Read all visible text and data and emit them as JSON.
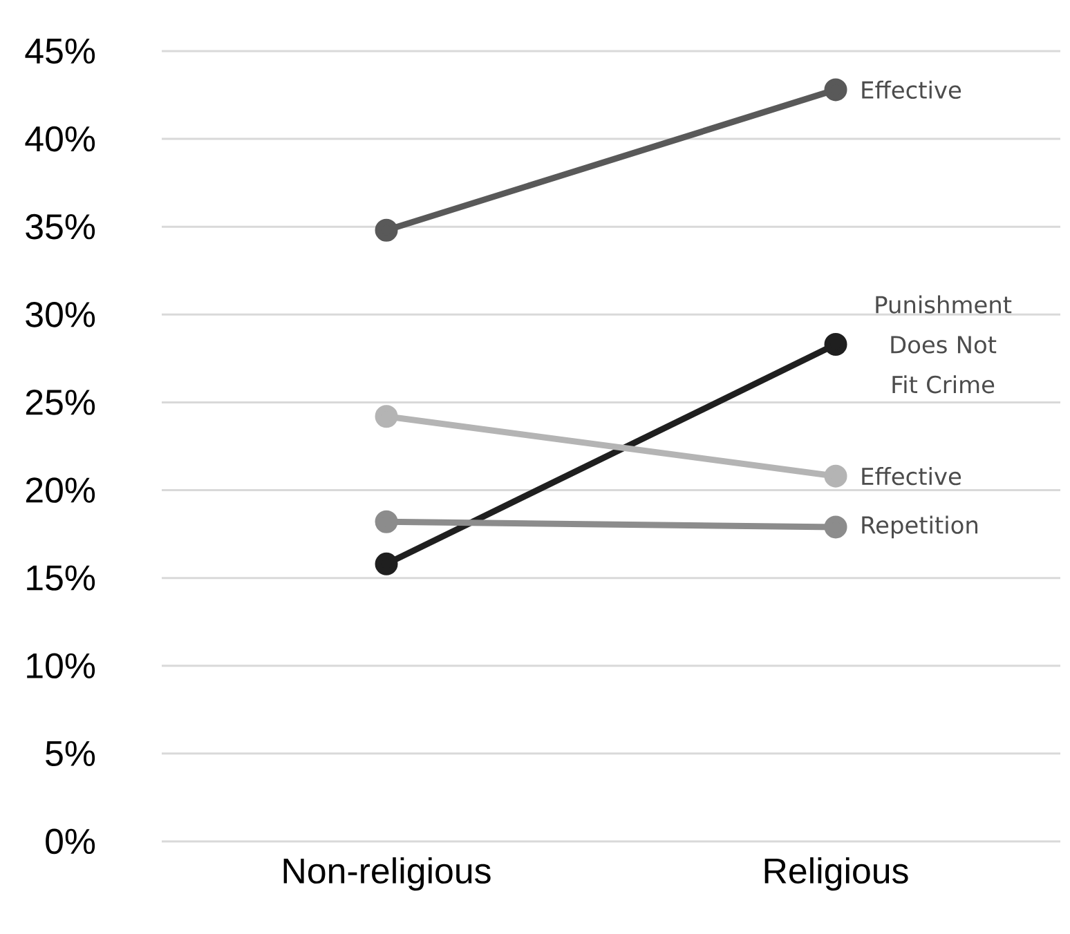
{
  "chart_data": {
    "type": "line",
    "categories": [
      "Non-religious",
      "Religious"
    ],
    "series": [
      {
        "name": "Effective",
        "color": "#595959",
        "values": [
          34.8,
          42.8
        ]
      },
      {
        "name": "Punishment Does Not Fit Crime",
        "color": "#1f1f1f",
        "values": [
          15.8,
          28.3
        ]
      },
      {
        "name": "Effective",
        "color": "#b4b4b4",
        "values": [
          24.2,
          20.8
        ]
      },
      {
        "name": "Repetition",
        "color": "#8c8c8c",
        "values": [
          18.2,
          17.9
        ]
      }
    ],
    "ylim": [
      0,
      45
    ],
    "yticks": [
      {
        "value": 0,
        "label": "0%"
      },
      {
        "value": 5,
        "label": "5%"
      },
      {
        "value": 10,
        "label": "10%"
      },
      {
        "value": 15,
        "label": "15%"
      },
      {
        "value": 20,
        "label": "20%"
      },
      {
        "value": 25,
        "label": "25%"
      },
      {
        "value": 30,
        "label": "30%"
      },
      {
        "value": 35,
        "label": "35%"
      },
      {
        "value": 40,
        "label": "40%"
      },
      {
        "value": 45,
        "label": "45%"
      }
    ],
    "grid": "y",
    "marker": "circle",
    "line_style": "solid"
  }
}
